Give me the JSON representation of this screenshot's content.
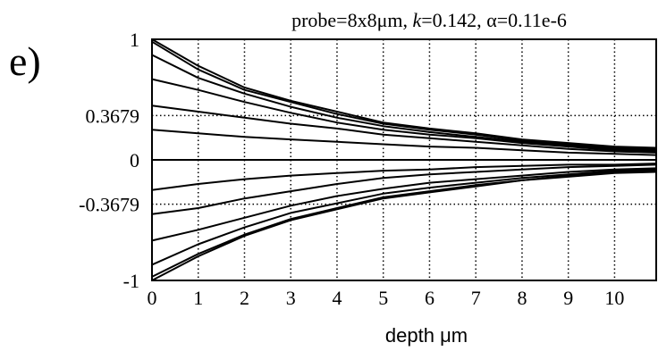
{
  "panel_label": "e)",
  "chart_data": {
    "type": "line",
    "title": {
      "prefix": "probe=8x8",
      "mu": "μ",
      "unit": "m, ",
      "k_symbol": "k",
      "k_value": "=0.142, ",
      "alpha_symbol": "α",
      "alpha_value": "=0.11e-6"
    },
    "xlabel": "depth μm",
    "ylabel": "",
    "xlim": [
      0,
      10.9
    ],
    "ylim": [
      -1,
      1
    ],
    "grid": true,
    "grid_style": "dotted",
    "x_ticks": [
      0,
      1,
      2,
      3,
      4,
      5,
      6,
      7,
      8,
      9,
      10
    ],
    "x_tick_labels": [
      "0",
      "1",
      "2",
      "3",
      "4",
      "5",
      "6",
      "7",
      "8",
      "9",
      "10"
    ],
    "y_ticks": [
      -1,
      -0.3679,
      0,
      0.3679,
      1
    ],
    "y_tick_labels": [
      "-1",
      "-0.3679",
      "0",
      "0.3679",
      "1"
    ],
    "x": [
      0,
      1,
      2,
      3,
      4,
      5,
      6,
      7,
      8,
      9,
      10,
      10.9
    ],
    "series": [
      {
        "values": [
          1.0,
          0.78,
          0.6,
          0.49,
          0.4,
          0.31,
          0.26,
          0.22,
          0.17,
          0.14,
          0.11,
          0.1
        ]
      },
      {
        "values": [
          0.98,
          0.75,
          0.58,
          0.48,
          0.38,
          0.3,
          0.25,
          0.21,
          0.16,
          0.13,
          0.1,
          0.09
        ]
      },
      {
        "values": [
          0.87,
          0.68,
          0.55,
          0.44,
          0.35,
          0.28,
          0.23,
          0.19,
          0.15,
          0.12,
          0.09,
          0.08
        ]
      },
      {
        "values": [
          0.67,
          0.58,
          0.48,
          0.39,
          0.31,
          0.25,
          0.21,
          0.18,
          0.14,
          0.11,
          0.08,
          0.07
        ]
      },
      {
        "values": [
          0.45,
          0.4,
          0.35,
          0.3,
          0.26,
          0.21,
          0.18,
          0.15,
          0.12,
          0.09,
          0.07,
          0.06
        ]
      },
      {
        "values": [
          0.25,
          0.22,
          0.19,
          0.17,
          0.15,
          0.13,
          0.11,
          0.1,
          0.08,
          0.06,
          0.05,
          0.04
        ]
      },
      {
        "values": [
          0.0,
          0.0,
          0.0,
          0.0,
          0.0,
          0.0,
          0.0,
          0.0,
          0.0,
          0.0,
          0.0,
          0.0
        ]
      },
      {
        "values": [
          -0.25,
          -0.2,
          -0.16,
          -0.13,
          -0.11,
          -0.09,
          -0.08,
          -0.06,
          -0.05,
          -0.04,
          -0.04,
          -0.03
        ]
      },
      {
        "values": [
          -0.45,
          -0.4,
          -0.32,
          -0.26,
          -0.2,
          -0.15,
          -0.12,
          -0.1,
          -0.08,
          -0.06,
          -0.05,
          -0.04
        ]
      },
      {
        "values": [
          -0.67,
          -0.58,
          -0.48,
          -0.38,
          -0.3,
          -0.24,
          -0.19,
          -0.16,
          -0.13,
          -0.1,
          -0.08,
          -0.07
        ]
      },
      {
        "values": [
          -0.87,
          -0.7,
          -0.56,
          -0.44,
          -0.36,
          -0.28,
          -0.23,
          -0.19,
          -0.15,
          -0.12,
          -0.09,
          -0.08
        ]
      },
      {
        "values": [
          -0.97,
          -0.78,
          -0.62,
          -0.49,
          -0.4,
          -0.31,
          -0.26,
          -0.21,
          -0.17,
          -0.13,
          -0.1,
          -0.09
        ]
      },
      {
        "values": [
          -1.0,
          -0.8,
          -0.63,
          -0.5,
          -0.41,
          -0.32,
          -0.27,
          -0.22,
          -0.17,
          -0.14,
          -0.11,
          -0.1
        ]
      }
    ]
  }
}
